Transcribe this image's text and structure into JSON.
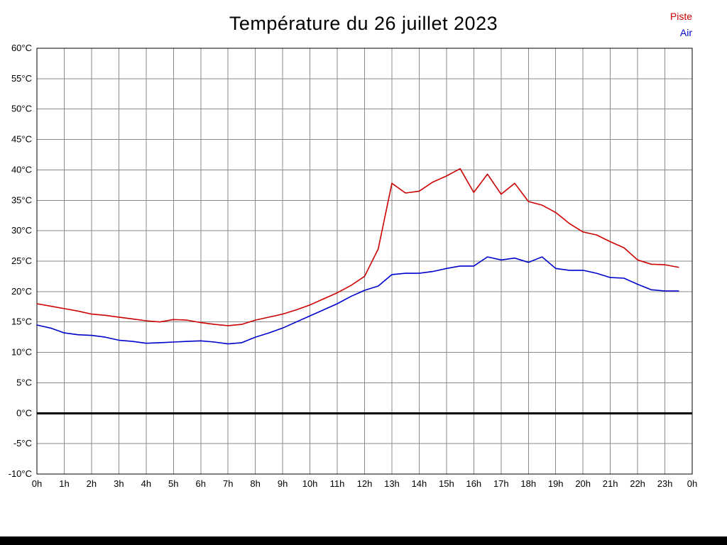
{
  "page": {
    "title": "Température du 26 juillet 2023"
  },
  "legend": {
    "items": [
      {
        "label": "Piste",
        "color": "#cc0000"
      },
      {
        "label": "Air",
        "color": "#0000cc"
      }
    ]
  },
  "chart_data": {
    "type": "line",
    "title": "Température du 26 juillet 2023",
    "xlabel": "",
    "ylabel": "",
    "x_unit": "hours",
    "x_range": [
      0,
      24
    ],
    "y_range": [
      -10,
      60
    ],
    "y_tick_step": 5,
    "grid": true,
    "zero_line": true,
    "legend_position": "top-right",
    "x_start": 0,
    "x_step": 0.5,
    "x_ticks": [
      {
        "v": 0,
        "label": "0h"
      },
      {
        "v": 1,
        "label": "1h"
      },
      {
        "v": 2,
        "label": "2h"
      },
      {
        "v": 3,
        "label": "3h"
      },
      {
        "v": 4,
        "label": "4h"
      },
      {
        "v": 5,
        "label": "5h"
      },
      {
        "v": 6,
        "label": "6h"
      },
      {
        "v": 7,
        "label": "7h"
      },
      {
        "v": 8,
        "label": "8h"
      },
      {
        "v": 9,
        "label": "9h"
      },
      {
        "v": 10,
        "label": "10h"
      },
      {
        "v": 11,
        "label": "11h"
      },
      {
        "v": 12,
        "label": "12h"
      },
      {
        "v": 13,
        "label": "13h"
      },
      {
        "v": 14,
        "label": "14h"
      },
      {
        "v": 15,
        "label": "15h"
      },
      {
        "v": 16,
        "label": "16h"
      },
      {
        "v": 17,
        "label": "17h"
      },
      {
        "v": 18,
        "label": "18h"
      },
      {
        "v": 19,
        "label": "19h"
      },
      {
        "v": 20,
        "label": "20h"
      },
      {
        "v": 21,
        "label": "21h"
      },
      {
        "v": 22,
        "label": "22h"
      },
      {
        "v": 23,
        "label": "23h"
      },
      {
        "v": 24,
        "label": "0h"
      }
    ],
    "y_ticks": [
      {
        "v": 60,
        "label": "60°C"
      },
      {
        "v": 55,
        "label": "55°C"
      },
      {
        "v": 50,
        "label": "50°C"
      },
      {
        "v": 45,
        "label": "45°C"
      },
      {
        "v": 40,
        "label": "40°C"
      },
      {
        "v": 35,
        "label": "35°C"
      },
      {
        "v": 30,
        "label": "30°C"
      },
      {
        "v": 25,
        "label": "25°C"
      },
      {
        "v": 20,
        "label": "20°C"
      },
      {
        "v": 15,
        "label": "15°C"
      },
      {
        "v": 10,
        "label": "10°C"
      },
      {
        "v": 5,
        "label": "5°C"
      },
      {
        "v": 0,
        "label": "0°C"
      },
      {
        "v": -5,
        "label": "-5°C"
      },
      {
        "v": -10,
        "label": "-10°C"
      }
    ],
    "series": [
      {
        "name": "Piste",
        "color": "#cc0000",
        "values": [
          18.0,
          17.6,
          17.2,
          16.8,
          16.3,
          16.1,
          15.8,
          15.5,
          15.2,
          15.0,
          15.4,
          15.3,
          14.9,
          14.6,
          14.4,
          14.6,
          15.3,
          15.8,
          16.3,
          17.0,
          17.8,
          18.8,
          19.8,
          21.0,
          22.5,
          27.0,
          37.8,
          36.2,
          36.5,
          38.0,
          39.0,
          40.2,
          36.3,
          39.3,
          36.0,
          37.8,
          34.8,
          34.2,
          33.0,
          31.2,
          29.8,
          29.3,
          28.2,
          27.2,
          25.2,
          24.5,
          24.4,
          24.0
        ]
      },
      {
        "name": "Air",
        "color": "#0000cc",
        "values": [
          14.5,
          14.0,
          13.2,
          12.9,
          12.8,
          12.5,
          12.0,
          11.8,
          11.5,
          11.6,
          11.7,
          11.8,
          11.9,
          11.7,
          11.4,
          11.6,
          12.5,
          13.2,
          14.0,
          15.0,
          16.0,
          17.0,
          18.0,
          19.2,
          20.2,
          20.9,
          22.8,
          23.0,
          23.0,
          23.3,
          23.8,
          24.2,
          24.2,
          25.7,
          25.2,
          25.5,
          24.8,
          25.7,
          23.8,
          23.5,
          23.5,
          23.0,
          22.3,
          22.2,
          21.2,
          20.3,
          20.1,
          20.1
        ]
      }
    ]
  }
}
